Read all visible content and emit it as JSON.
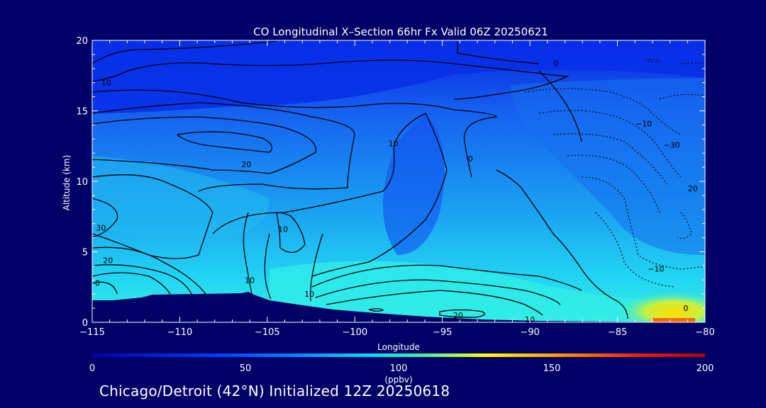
{
  "chart_data": {
    "type": "heatmap",
    "title": "CO Longitudinal X–Section 66hr  Fx Valid 06Z 20250621",
    "xlabel": "Longitude",
    "ylabel": "Altitude (km)",
    "xlim": [
      -115,
      -80
    ],
    "ylim": [
      0,
      20
    ],
    "x_ticks": [
      -115,
      -110,
      -105,
      -100,
      -95,
      -90,
      -85,
      -80
    ],
    "x_tick_labels": [
      "−115",
      "−110",
      "−105",
      "−100",
      "−95",
      "−90",
      "−85",
      "−80"
    ],
    "y_ticks": [
      0,
      5,
      10,
      15,
      20
    ],
    "y_tick_labels": [
      "0",
      "5",
      "10",
      "15",
      "20"
    ],
    "colorbar": {
      "label": "(ppbv)",
      "range": [
        0,
        200
      ],
      "ticks": [
        0,
        50,
        100,
        150,
        200
      ],
      "tick_labels": [
        "0",
        "50",
        "100",
        "150",
        "200"
      ]
    },
    "contour_labels": [
      {
        "text": "10",
        "lon": -114.2,
        "alt": 17.0
      },
      {
        "text": "0",
        "lon": -88.5,
        "alt": 18.4
      },
      {
        "text": "−10",
        "lon": -83.5,
        "alt": 14.1
      },
      {
        "text": "−30",
        "lon": -81.9,
        "alt": 12.6
      },
      {
        "text": "20",
        "lon": -106.2,
        "alt": 11.2
      },
      {
        "text": "10",
        "lon": -97.8,
        "alt": 12.7
      },
      {
        "text": "0",
        "lon": -93.4,
        "alt": 11.6
      },
      {
        "text": "20",
        "lon": -80.7,
        "alt": 9.5
      },
      {
        "text": "30",
        "lon": -114.5,
        "alt": 6.7
      },
      {
        "text": "10",
        "lon": -104.1,
        "alt": 6.6
      },
      {
        "text": "20",
        "lon": -114.1,
        "alt": 4.4
      },
      {
        "text": "−10",
        "lon": -82.8,
        "alt": 3.8
      },
      {
        "text": "0",
        "lon": -114.7,
        "alt": 2.8
      },
      {
        "text": "10",
        "lon": -106.0,
        "alt": 3.0
      },
      {
        "text": "10",
        "lon": -102.6,
        "alt": 2.0
      },
      {
        "text": "20",
        "lon": -94.1,
        "alt": 0.5
      },
      {
        "text": "0",
        "lon": -81.1,
        "alt": 1.0
      },
      {
        "text": "10",
        "lon": -90.0,
        "alt": 0.2
      }
    ]
  },
  "footer_text": "Chicago/Detroit (42°N) Initialized 12Z 20250618"
}
